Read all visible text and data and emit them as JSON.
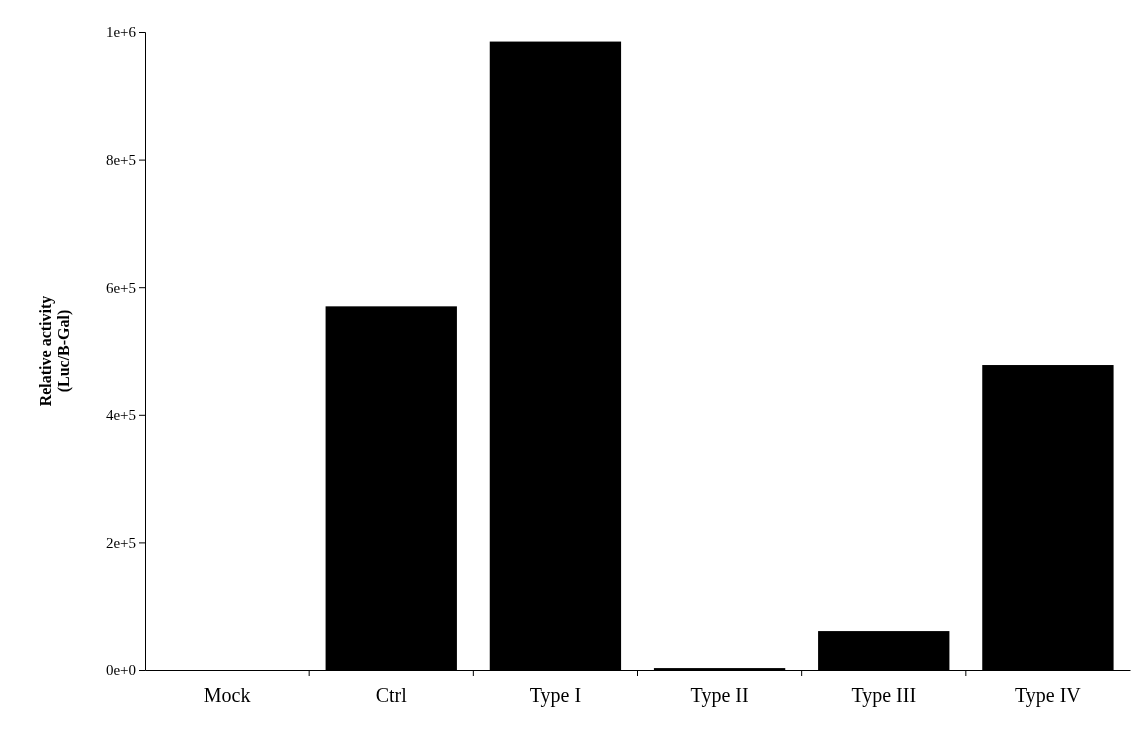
{
  "chart_data": {
    "type": "bar",
    "ylabel": "Relative activity\n(Luc/B-Gal)",
    "categories": [
      "Mock",
      "Ctrl",
      "Type I",
      "Type II",
      "Type III",
      "Type IV"
    ],
    "values": [
      0,
      570000,
      985000,
      3000,
      61000,
      478000
    ],
    "color": "#000000",
    "ylim": [
      0,
      1000000
    ],
    "yticks": [
      {
        "value": 0,
        "label": "0e+0"
      },
      {
        "value": 200000,
        "label": "2e+5"
      },
      {
        "value": 400000,
        "label": "4e+5"
      },
      {
        "value": 600000,
        "label": "6e+5"
      },
      {
        "value": 800000,
        "label": "8e+5"
      },
      {
        "value": 1000000,
        "label": "1e+6"
      }
    ],
    "grid": false
  }
}
